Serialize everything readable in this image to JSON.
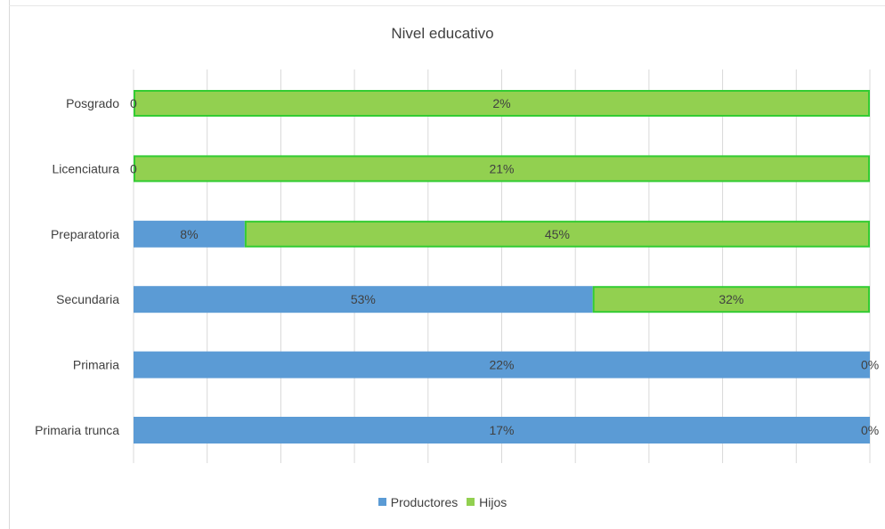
{
  "chart_data": {
    "type": "bar",
    "orientation": "horizontal",
    "stacked": "100%",
    "title": "Nivel educativo",
    "categories": [
      "Posgrado",
      "Licenciatura",
      "Preparatoria",
      "Secundaria",
      "Primaria",
      "Primaria trunca"
    ],
    "series": [
      {
        "name": "Productores",
        "color": "#5b9bd5",
        "values": [
          0,
          0,
          0.08,
          0.53,
          0.22,
          0.17
        ],
        "labels": [
          "0",
          "0",
          "8%",
          "53%",
          "22%",
          "17%"
        ]
      },
      {
        "name": "Hijos",
        "color": "#92d050",
        "border_color": "#33cc33",
        "values": [
          0.02,
          0.21,
          0.45,
          0.32,
          0,
          0
        ],
        "labels": [
          "2%",
          "21%",
          "45%",
          "32%",
          "0%",
          "0%"
        ]
      }
    ],
    "grid": true,
    "legend_position": "bottom"
  }
}
